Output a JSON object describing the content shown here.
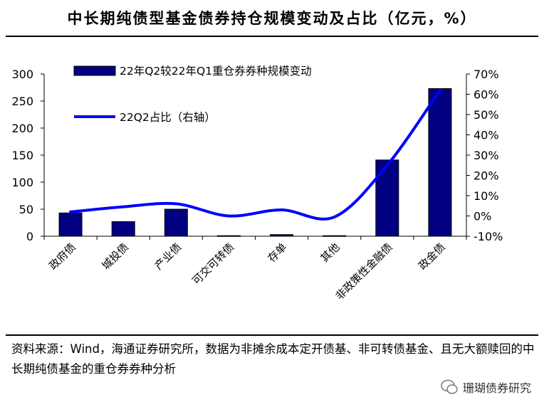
{
  "chart_data": {
    "type": "bar+line",
    "title": "中长期纯债型基金债券持仓规模变动及占比（亿元，%）",
    "categories": [
      "政府债",
      "城投债",
      "产业债",
      "可交可转债",
      "存单",
      "其他",
      "非政策性金融债",
      "政金债"
    ],
    "series": [
      {
        "name": "22年Q2较22年Q1重仓券券种规模变动",
        "type": "bar",
        "axis": "left",
        "color": "#000080",
        "values": [
          43,
          27,
          50,
          1,
          3,
          1,
          141,
          273
        ]
      },
      {
        "name": "22Q2占比（右轴）",
        "type": "line",
        "axis": "right",
        "color": "#0000ff",
        "values": [
          2,
          4.5,
          6,
          0,
          3,
          -0.5,
          25,
          62
        ]
      }
    ],
    "ylim_left": [
      0,
      300
    ],
    "yticks_left": [
      "0",
      "50",
      "100",
      "150",
      "200",
      "250",
      "300"
    ],
    "ylim_right": [
      -10,
      70
    ],
    "yticks_right": [
      "-10%",
      "0%",
      "10%",
      "20%",
      "30%",
      "40%",
      "50%",
      "60%",
      "70%"
    ],
    "legend": "top-left, inside"
  },
  "source_note": "资料来源：Wind，海通证券研究所，数据为非摊余成本定开债基、非可转债基金、且无大额赎回的中长期纯债基金的重仓券券种分析",
  "watermark": "珊瑚债券研究"
}
